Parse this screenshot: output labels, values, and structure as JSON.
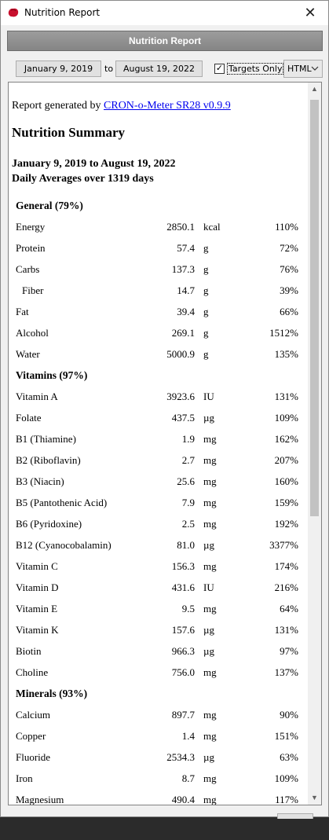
{
  "window": {
    "title": "Nutrition Report",
    "close_glyph": "✕",
    "app_icon": "red-blob-logo"
  },
  "header": {
    "title": "Nutrition Report"
  },
  "toolbar": {
    "start_date": "January 9, 2019",
    "to_label": "to",
    "end_date": "August 19, 2022",
    "targets_only_label": "Targets Only",
    "targets_only_checked": true,
    "check_glyph": "✓",
    "format_value": "HTML"
  },
  "report": {
    "generated_prefix": "Report generated by ",
    "generated_link": "CRON-o-Meter SR28 v0.9.9",
    "summary_title": "Nutrition Summary",
    "date_range": "January 9, 2019 to August 19, 2022",
    "daily_avg": "Daily Averages over 1319 days",
    "rows": [
      {
        "type": "section",
        "name": "General (79%)"
      },
      {
        "type": "item",
        "name": "Energy",
        "value": "2850.1",
        "unit": "kcal",
        "pct": "110%"
      },
      {
        "type": "item",
        "name": "Protein",
        "value": "57.4",
        "unit": "g",
        "pct": "72%"
      },
      {
        "type": "item",
        "name": "Carbs",
        "value": "137.3",
        "unit": "g",
        "pct": "76%"
      },
      {
        "type": "item",
        "name": "Fiber",
        "value": "14.7",
        "unit": "g",
        "pct": "39%",
        "indent": true
      },
      {
        "type": "item",
        "name": "Fat",
        "value": "39.4",
        "unit": "g",
        "pct": "66%"
      },
      {
        "type": "item",
        "name": "Alcohol",
        "value": "269.1",
        "unit": "g",
        "pct": "1512%"
      },
      {
        "type": "item",
        "name": "Water",
        "value": "5000.9",
        "unit": "g",
        "pct": "135%"
      },
      {
        "type": "section",
        "name": "Vitamins (97%)"
      },
      {
        "type": "item",
        "name": "Vitamin A",
        "value": "3923.6",
        "unit": "IU",
        "pct": "131%"
      },
      {
        "type": "item",
        "name": "Folate",
        "value": "437.5",
        "unit": "µg",
        "pct": "109%"
      },
      {
        "type": "item",
        "name": "B1 (Thiamine)",
        "value": "1.9",
        "unit": "mg",
        "pct": "162%"
      },
      {
        "type": "item",
        "name": "B2 (Riboflavin)",
        "value": "2.7",
        "unit": "mg",
        "pct": "207%"
      },
      {
        "type": "item",
        "name": "B3 (Niacin)",
        "value": "25.6",
        "unit": "mg",
        "pct": "160%"
      },
      {
        "type": "item",
        "name": "B5 (Pantothenic Acid)",
        "value": "7.9",
        "unit": "mg",
        "pct": "159%"
      },
      {
        "type": "item",
        "name": "B6 (Pyridoxine)",
        "value": "2.5",
        "unit": "mg",
        "pct": "192%"
      },
      {
        "type": "item",
        "name": "B12 (Cyanocobalamin)",
        "value": "81.0",
        "unit": "µg",
        "pct": "3377%"
      },
      {
        "type": "item",
        "name": "Vitamin C",
        "value": "156.3",
        "unit": "mg",
        "pct": "174%"
      },
      {
        "type": "item",
        "name": "Vitamin D",
        "value": "431.6",
        "unit": "IU",
        "pct": "216%"
      },
      {
        "type": "item",
        "name": "Vitamin E",
        "value": "9.5",
        "unit": "mg",
        "pct": "64%"
      },
      {
        "type": "item",
        "name": "Vitamin K",
        "value": "157.6",
        "unit": "µg",
        "pct": "131%"
      },
      {
        "type": "item",
        "name": "Biotin",
        "value": "966.3",
        "unit": "µg",
        "pct": "97%"
      },
      {
        "type": "item",
        "name": "Choline",
        "value": "756.0",
        "unit": "mg",
        "pct": "137%"
      },
      {
        "type": "section",
        "name": "Minerals (93%)"
      },
      {
        "type": "item",
        "name": "Calcium",
        "value": "897.7",
        "unit": "mg",
        "pct": "90%"
      },
      {
        "type": "item",
        "name": "Copper",
        "value": "1.4",
        "unit": "mg",
        "pct": "151%"
      },
      {
        "type": "item",
        "name": "Fluoride",
        "value": "2534.3",
        "unit": "µg",
        "pct": "63%"
      },
      {
        "type": "item",
        "name": "Iron",
        "value": "8.7",
        "unit": "mg",
        "pct": "109%"
      },
      {
        "type": "item",
        "name": "Magnesium",
        "value": "490.4",
        "unit": "mg",
        "pct": "117%"
      }
    ]
  },
  "scrollbar": {
    "up_glyph": "▲",
    "down_glyph": "▼"
  },
  "colors": {
    "header_bg": "#8f8f8f",
    "link": "#0000ee",
    "window_bg": "#f0f0f0"
  }
}
